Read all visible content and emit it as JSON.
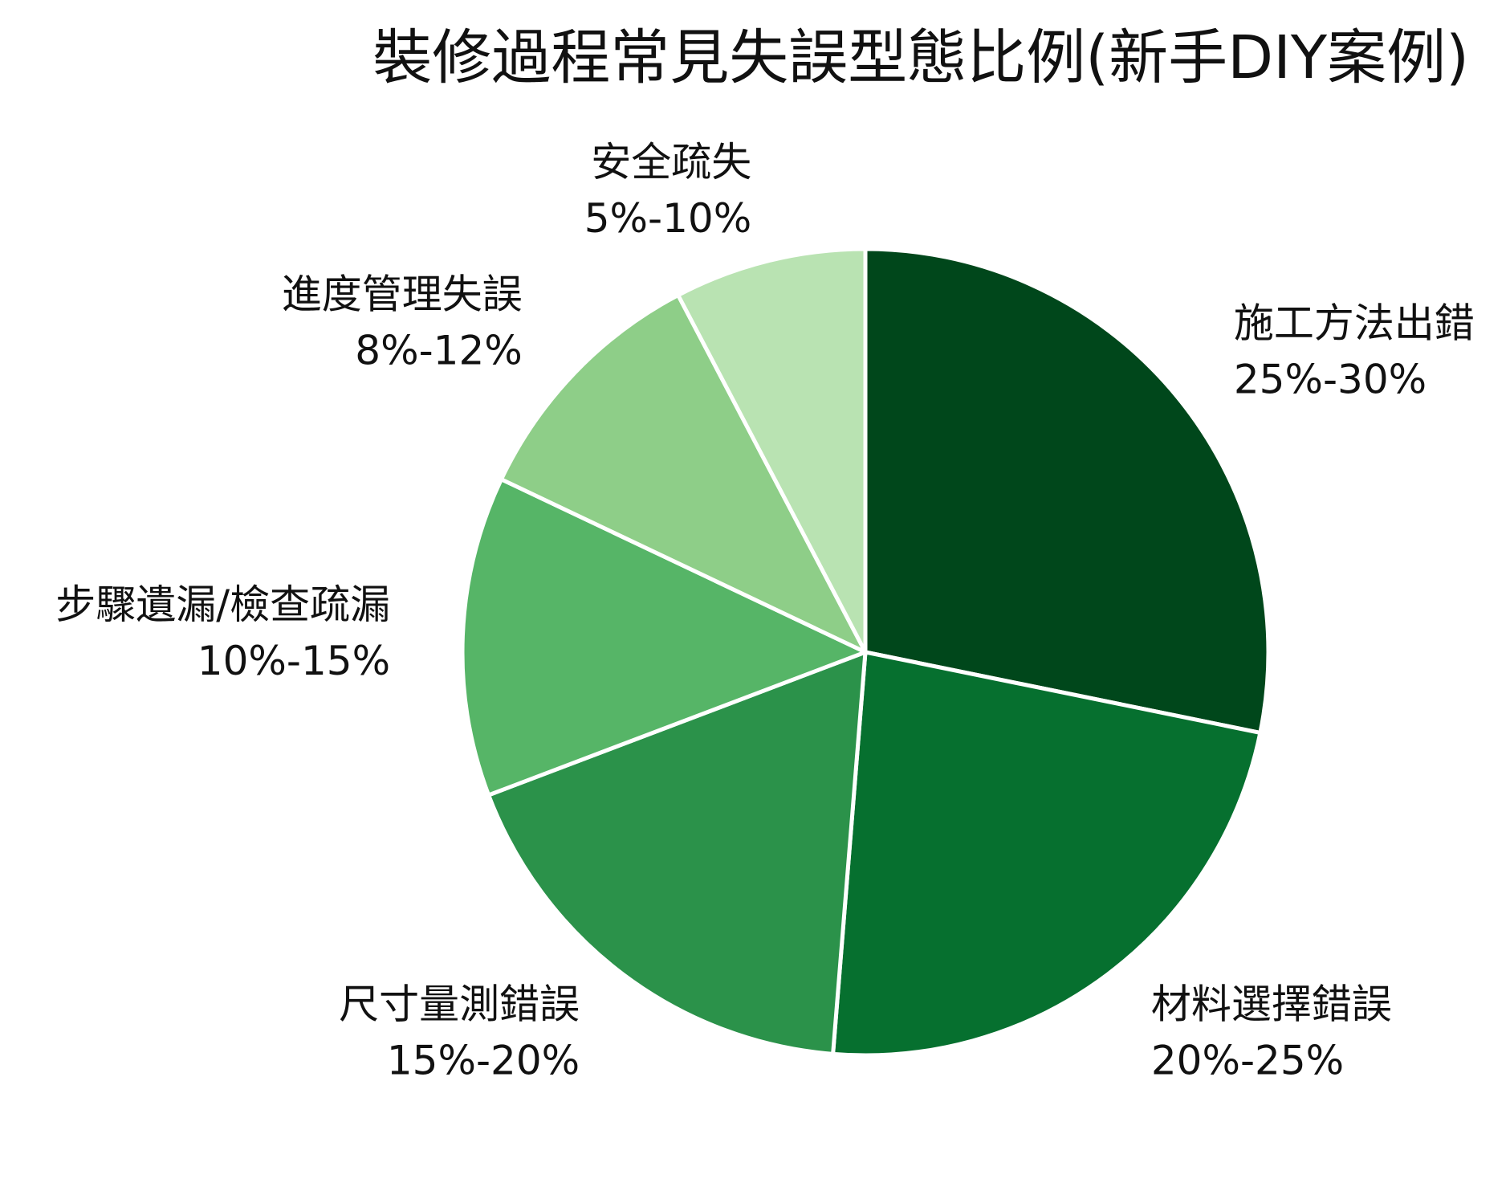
{
  "chart_data": {
    "type": "pie",
    "title": "裝修過程常見失誤型態比例(新手DIY案例)",
    "start_angle_deg": 0,
    "direction": "clockwise",
    "slice_border_color": "#ffffff",
    "slices": [
      {
        "label": "施工方法出錯",
        "range": "25%-30%",
        "value": 27.5,
        "color": "#00471b"
      },
      {
        "label": "材料選擇錯誤",
        "range": "20%-25%",
        "value": 22.5,
        "color": "#06702f"
      },
      {
        "label": "尺寸量測錯誤",
        "range": "15%-20%",
        "value": 17.5,
        "color": "#2b924a"
      },
      {
        "label": "步驟遺漏/檢查疏漏",
        "range": "10%-15%",
        "value": 12.5,
        "color": "#56b567"
      },
      {
        "label": "進度管理失誤",
        "range": "8%-12%",
        "value": 10,
        "color": "#8ece88"
      },
      {
        "label": "安全疏失",
        "range": "5%-10%",
        "value": 7.5,
        "color": "#b9e3b2"
      }
    ]
  }
}
